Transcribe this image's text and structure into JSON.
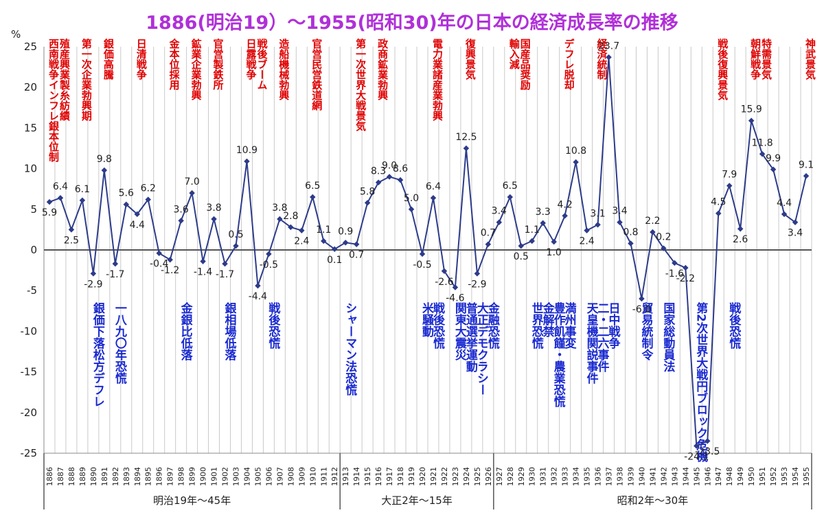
{
  "colors": {
    "title": "#b030d8",
    "line": "#2d3b8a",
    "marker": "#2d3b8a",
    "boom": "#e00000",
    "crisis": "#1a2ad0",
    "grid": "#c9c9c9",
    "zero": "#555555"
  },
  "chart_data": {
    "type": "line",
    "title": "1886(明治19）～1955(昭和30)年の日本の経済成長率の推移",
    "ylabel": "%",
    "ylim": [
      -25,
      25
    ],
    "yticks": [
      25,
      20,
      15,
      10,
      5,
      0,
      -5,
      -10,
      -15,
      -20,
      -25
    ],
    "grid": "vertical",
    "x": [
      1886,
      1887,
      1888,
      1889,
      1890,
      1891,
      1892,
      1893,
      1894,
      1895,
      1896,
      1897,
      1898,
      1899,
      1900,
      1901,
      1902,
      1903,
      1904,
      1905,
      1906,
      1907,
      1908,
      1909,
      1910,
      1911,
      1912,
      1913,
      1914,
      1915,
      1916,
      1917,
      1918,
      1919,
      1920,
      1921,
      1922,
      1923,
      1924,
      1925,
      1926,
      1927,
      1928,
      1929,
      1930,
      1931,
      1932,
      1933,
      1934,
      1935,
      1936,
      1937,
      1938,
      1939,
      1940,
      1941,
      1942,
      1943,
      1944,
      1945,
      1946,
      1947,
      1948,
      1949,
      1950,
      1951,
      1952,
      1953,
      1954,
      1955
    ],
    "series": [
      {
        "values": [
          5.9,
          6.4,
          2.5,
          6.1,
          -2.9,
          9.8,
          -1.7,
          5.6,
          4.4,
          6.2,
          -0.4,
          -1.2,
          3.6,
          7.0,
          -1.4,
          3.8,
          -1.7,
          0.5,
          10.9,
          -4.4,
          -0.5,
          3.8,
          2.8,
          2.4,
          6.5,
          1.1,
          0.1,
          0.9,
          0.7,
          5.8,
          8.3,
          9.0,
          8.6,
          5.0,
          -0.5,
          6.4,
          -2.6,
          -4.6,
          12.5,
          -2.9,
          0.7,
          3.4,
          6.5,
          0.5,
          1.1,
          3.3,
          1.0,
          4.2,
          10.8,
          2.4,
          3.1,
          23.7,
          3.4,
          0.8,
          -6.0,
          2.2,
          0.2,
          -1.6,
          -2.2,
          -24.1,
          -23.5,
          4.5,
          7.9,
          2.6,
          15.9,
          11.8,
          9.9,
          4.4,
          3.4,
          9.1
        ],
        "labels": [
          "5.9",
          "6.4",
          "2.5",
          "6.1",
          "-2.9",
          "9.8",
          "-1.7",
          "5.6",
          "4.4",
          "6.2",
          "-0.4",
          "-1.2",
          "3.6",
          "7.0",
          "-1.4",
          "3.8",
          "-1.7",
          "0.5",
          "10.9",
          "-4.4",
          "-0.5",
          "3.8",
          "2.8",
          "2.4",
          "6.5",
          "1.1",
          "0.1",
          "0.9",
          "0.7",
          "5.8",
          "8.3",
          "9.0",
          "8.6",
          "5.0",
          "-0.5",
          "6.4",
          "-2.6",
          "-4.6",
          "12.5",
          "-2.9",
          "0.7",
          "3.4",
          "6.5",
          "0.5",
          "1.1",
          "3.3",
          "1.0",
          "4.2",
          "10.8",
          "2.4",
          "3.1",
          "23.7",
          "3.4",
          "0.8",
          "-6.0",
          "2.2",
          "0.2",
          "-1.6",
          "-2.2",
          "-24.1",
          "-23.5",
          "4.5",
          "7.9",
          "2.6",
          "15.9",
          "11.8",
          "9.9",
          "4.4",
          "3.4",
          "9.1"
        ]
      }
    ],
    "eras": [
      {
        "label": "明治19年～45年",
        "from": 1886,
        "to": 1912
      },
      {
        "label": "大正2年～15年",
        "from": 1913,
        "to": 1926
      },
      {
        "label": "昭和2年～30年",
        "from": 1927,
        "to": 1955
      }
    ],
    "events_boom": [
      {
        "year": 1886,
        "text": "西南戦争インフレ銀本位制"
      },
      {
        "year": 1887,
        "text": "殖産興業製糸紡績"
      },
      {
        "year": 1889,
        "text": "第一次企業勃興期"
      },
      {
        "year": 1891,
        "text": "銀価高騰"
      },
      {
        "year": 1894,
        "text": "日清戦争"
      },
      {
        "year": 1897,
        "text": "金本位採用"
      },
      {
        "year": 1899,
        "text": "鉱業企業勃興"
      },
      {
        "year": 1901,
        "text": "官営製鉄所"
      },
      {
        "year": 1904,
        "text": "日露戦争"
      },
      {
        "year": 1905,
        "text": "戦後ブーム"
      },
      {
        "year": 1907,
        "text": "造船機械勃興"
      },
      {
        "year": 1910,
        "text": "官営民営鉄道網"
      },
      {
        "year": 1914,
        "text": "第一次世界大戦景気"
      },
      {
        "year": 1916,
        "text": "政商鉱業勃興"
      },
      {
        "year": 1921,
        "text": "電力業諸産業勃興"
      },
      {
        "year": 1924,
        "text": "復興景気"
      },
      {
        "year": 1928,
        "text": "輸入減"
      },
      {
        "year": 1929,
        "text": "国産品奨励"
      },
      {
        "year": 1933,
        "text": "デフレ脱却"
      },
      {
        "year": 1936,
        "text": "経済統制"
      },
      {
        "year": 1947,
        "text": "戦後復興景気"
      },
      {
        "year": 1950,
        "text": "朝鮮戦争"
      },
      {
        "year": 1951,
        "text": "特需景気"
      },
      {
        "year": 1955,
        "text": "神武景気"
      }
    ],
    "events_crisis": [
      {
        "year": 1890,
        "text": "銀価下落松方デフレ"
      },
      {
        "year": 1892,
        "text": "一八九〇年恐慌"
      },
      {
        "year": 1898,
        "text": "金銀比低落"
      },
      {
        "year": 1902,
        "text": "銀相場低落"
      },
      {
        "year": 1906,
        "text": "戦後恐慌"
      },
      {
        "year": 1913,
        "text": "シャーマン法恐慌"
      },
      {
        "year": 1920,
        "text": "米騒動"
      },
      {
        "year": 1921,
        "text": "戦後恐慌"
      },
      {
        "year": 1923,
        "text": "関東大震災"
      },
      {
        "year": 1924,
        "text": "普通選挙運動"
      },
      {
        "year": 1925,
        "text": "大正デモクラシー"
      },
      {
        "year": 1926,
        "text": "金融恐慌"
      },
      {
        "year": 1930,
        "text": "世界恐慌"
      },
      {
        "year": 1931,
        "text": "金解禁"
      },
      {
        "year": 1932,
        "text": "豊作飢饉・農業恐慌"
      },
      {
        "year": 1933,
        "text": "満州事変"
      },
      {
        "year": 1935,
        "text": "天皇機関説事件"
      },
      {
        "year": 1936,
        "text": "二・二六事件"
      },
      {
        "year": 1937,
        "text": "日中戦争"
      },
      {
        "year": 1940,
        "text": "貿易統制令"
      },
      {
        "year": 1942,
        "text": "国家総動員法"
      },
      {
        "year": 1945,
        "text": "第2次世界大戦円ブロック危機"
      },
      {
        "year": 1948,
        "text": "戦後恐慌"
      }
    ]
  }
}
